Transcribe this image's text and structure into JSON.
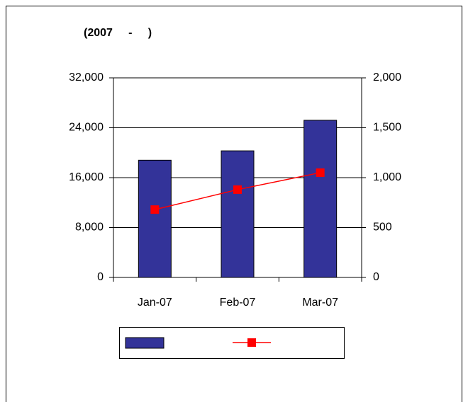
{
  "chart_data": {
    "type": "bar",
    "title": "(2007     -     )",
    "categories": [
      "Jan-07",
      "Feb-07",
      "Mar-07"
    ],
    "series": [
      {
        "type": "bar",
        "color": "#333399",
        "values": [
          18800,
          20300,
          25200
        ]
      },
      {
        "type": "line",
        "axis": "y2",
        "color": "#ff0000",
        "values": [
          680,
          880,
          1050
        ]
      }
    ],
    "ylim": [
      0,
      32000
    ],
    "yticks": [
      0,
      {
        "value": 8000,
        "label": "8,000"
      },
      {
        "value": 16000,
        "label": "16,000"
      },
      {
        "value": 24000,
        "label": "24,000"
      },
      {
        "value": 32000,
        "label": "32,000"
      }
    ],
    "y2lim": [
      0,
      2000
    ],
    "y2ticks": [
      0,
      500,
      {
        "value": 1000,
        "label": "1,000"
      },
      {
        "value": 1500,
        "label": "1,500"
      },
      {
        "value": 2000,
        "label": "2,000"
      }
    ],
    "grid": true
  }
}
